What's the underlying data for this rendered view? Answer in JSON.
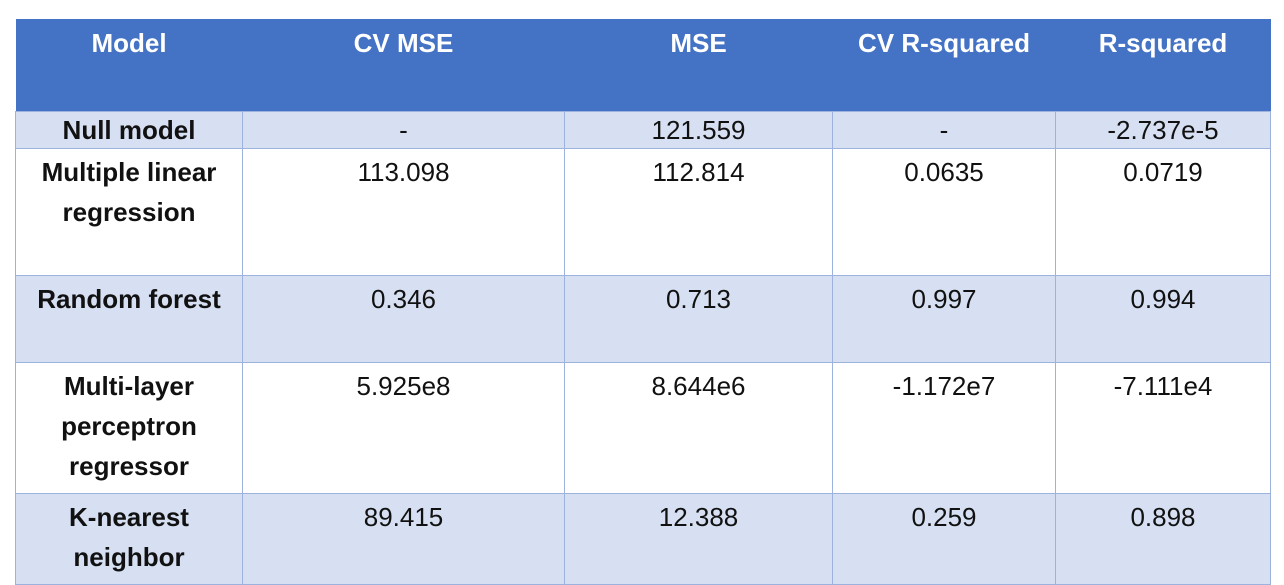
{
  "table": {
    "headers": [
      "Model",
      "CV MSE",
      "MSE",
      "CV R-squared",
      "R-squared"
    ],
    "rows": [
      {
        "model": "Null model",
        "cv_mse": "-",
        "mse": "121.559",
        "cv_r2": "-",
        "r2": "-2.737e-5"
      },
      {
        "model": "Multiple linear regression",
        "cv_mse": "113.098",
        "mse": "112.814",
        "cv_r2": "0.0635",
        "r2": "0.0719"
      },
      {
        "model": "Random forest",
        "cv_mse": "0.346",
        "mse": "0.713",
        "cv_r2": "0.997",
        "r2": "0.994"
      },
      {
        "model": "Multi-layer perceptron regressor",
        "cv_mse": "5.925e8",
        "mse": "8.644e6",
        "cv_r2": "-1.172e7",
        "r2": "-7.111e4"
      },
      {
        "model": "K-nearest neighbor",
        "cv_mse": "89.415",
        "mse": "12.388",
        "cv_r2": "0.259",
        "r2": "0.898"
      }
    ]
  },
  "colors": {
    "header_bg": "#4472c4",
    "header_text": "#ffffff",
    "shaded_row_bg": "#d6e0f2",
    "plain_row_bg": "#ffffff",
    "border": "#9db2dc"
  }
}
